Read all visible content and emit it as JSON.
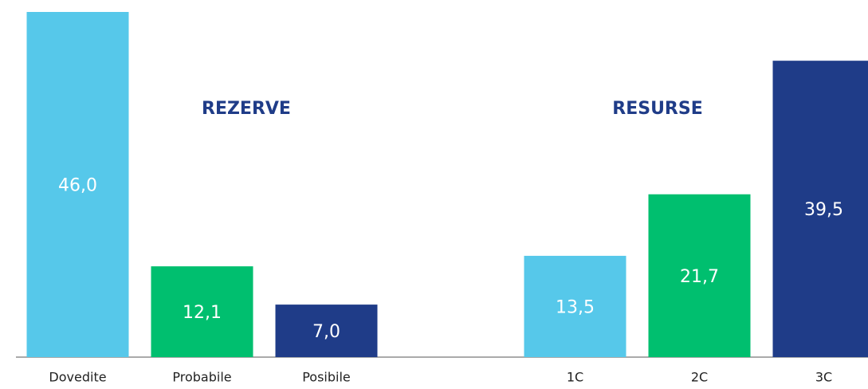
{
  "chart_data": {
    "type": "bar",
    "categories": [
      "Dovedite",
      "Probabile",
      "Posibile",
      null,
      "1C",
      "2C",
      "3C"
    ],
    "values": [
      46.0,
      12.1,
      7.0,
      null,
      13.5,
      21.7,
      39.5
    ],
    "value_labels": [
      "46,0",
      "12,1",
      "7,0",
      null,
      "13,5",
      "21,7",
      "39,5"
    ],
    "colors": [
      "#56c8ea",
      "#00bf6f",
      "#1f3c88",
      null,
      "#56c8ea",
      "#00bf6f",
      "#1f3c88"
    ],
    "annotations": [
      "REZERVE",
      "RESURSE"
    ],
    "ylim": [
      0,
      46
    ]
  }
}
